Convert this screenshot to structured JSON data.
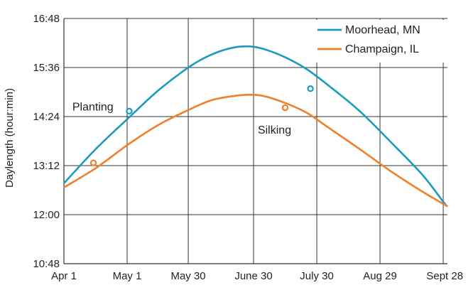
{
  "chart_data": {
    "type": "line",
    "ylabel": "Daylength (hour:min)",
    "grid": true,
    "legend_position": "top-right",
    "x_ticks": [
      {
        "label": "Apr 1",
        "day": 0
      },
      {
        "label": "May 1",
        "day": 30
      },
      {
        "label": "May 30",
        "day": 59
      },
      {
        "label": "June 30",
        "day": 90
      },
      {
        "label": "July 30",
        "day": 120
      },
      {
        "label": "Aug 29",
        "day": 150
      },
      {
        "label": "Sept 28",
        "day": 180
      }
    ],
    "y_ticks": [
      {
        "label": "10:48",
        "minutes": 648
      },
      {
        "label": "12:00",
        "minutes": 720
      },
      {
        "label": "13:12",
        "minutes": 792
      },
      {
        "label": "14:24",
        "minutes": 864
      },
      {
        "label": "15:36",
        "minutes": 936
      },
      {
        "label": "16:48",
        "minutes": 1008
      }
    ],
    "xlim": [
      0,
      182
    ],
    "ylim": [
      648,
      1008
    ],
    "series": [
      {
        "name": "Moorhead, MN",
        "color": "#1a9bbd",
        "points": [
          [
            0,
            766
          ],
          [
            15,
            816
          ],
          [
            30,
            860
          ],
          [
            45,
            903
          ],
          [
            60,
            938
          ],
          [
            70,
            955
          ],
          [
            80,
            965
          ],
          [
            88,
            967
          ],
          [
            95,
            963
          ],
          [
            105,
            951
          ],
          [
            115,
            934
          ],
          [
            125,
            911
          ],
          [
            140,
            873
          ],
          [
            155,
            827
          ],
          [
            170,
            779
          ],
          [
            180,
            739
          ],
          [
            182,
            732
          ]
        ],
        "markers": [
          {
            "day": 31,
            "minutes": 872
          },
          {
            "day": 117,
            "minutes": 905
          }
        ]
      },
      {
        "name": "Champaign, IL",
        "color": "#f07f2a",
        "points": [
          [
            0,
            760
          ],
          [
            15,
            788
          ],
          [
            30,
            822
          ],
          [
            45,
            852
          ],
          [
            60,
            875
          ],
          [
            70,
            888
          ],
          [
            80,
            894
          ],
          [
            88,
            896
          ],
          [
            95,
            894
          ],
          [
            105,
            884
          ],
          [
            115,
            870
          ],
          [
            125,
            849
          ],
          [
            140,
            817
          ],
          [
            155,
            784
          ],
          [
            170,
            754
          ],
          [
            180,
            736
          ],
          [
            182,
            732
          ]
        ],
        "markers": [
          {
            "day": 14,
            "minutes": 796
          },
          {
            "day": 105,
            "minutes": 877
          }
        ]
      }
    ],
    "annotations": [
      {
        "text": "Planting",
        "day": 4,
        "minutes": 873
      },
      {
        "text": "Silking",
        "day": 92,
        "minutes": 839
      }
    ]
  }
}
